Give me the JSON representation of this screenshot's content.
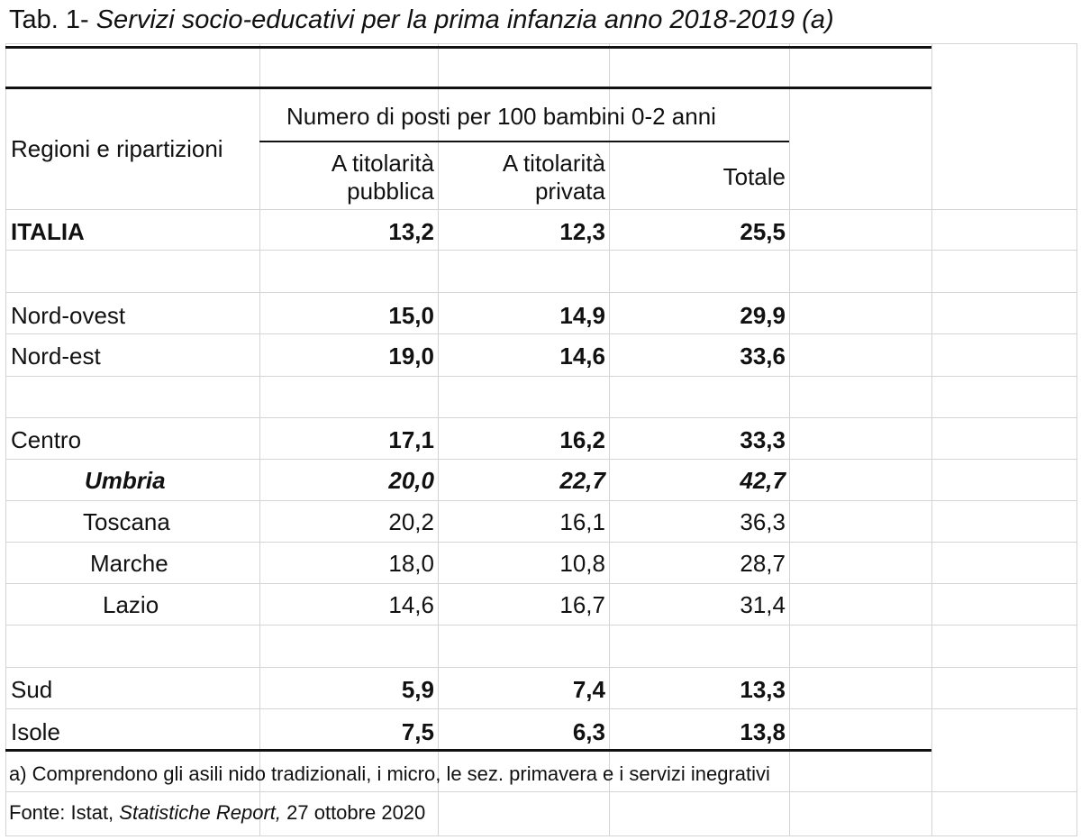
{
  "title": {
    "prefix": "Tab. 1- ",
    "text": "Servizi socio-educativi per la prima infanzia anno 2018-2019 (a)"
  },
  "header": {
    "row_label": "Regioni e ripartizioni",
    "group_label": "Numero di posti per 100 bambini 0-2 anni",
    "col1_line1": "A titolarità",
    "col1_line2": "pubblica",
    "col2_line1": "A titolarità",
    "col2_line2": "privata",
    "col3": "Totale"
  },
  "rows": [
    {
      "label": "ITALIA",
      "pub": "13,2",
      "priv": "12,3",
      "tot": "25,5"
    },
    {
      "label": "Nord-ovest",
      "pub": "15,0",
      "priv": "14,9",
      "tot": "29,9"
    },
    {
      "label": "Nord-est",
      "pub": "19,0",
      "priv": "14,6",
      "tot": "33,6"
    },
    {
      "label": "Centro",
      "pub": "17,1",
      "priv": "16,2",
      "tot": "33,3"
    },
    {
      "label": "Umbria",
      "pub": "20,0",
      "priv": "22,7",
      "tot": "42,7"
    },
    {
      "label": "Toscana",
      "pub": "20,2",
      "priv": "16,1",
      "tot": "36,3"
    },
    {
      "label": "Marche",
      "pub": "18,0",
      "priv": "10,8",
      "tot": "28,7"
    },
    {
      "label": "Lazio",
      "pub": "14,6",
      "priv": "16,7",
      "tot": "31,4"
    },
    {
      "label": "Sud",
      "pub": "5,9",
      "priv": "7,4",
      "tot": "13,3"
    },
    {
      "label": "Isole",
      "pub": "7,5",
      "priv": "6,3",
      "tot": "13,8"
    }
  ],
  "footnote": "a) Comprendono gli asili nido tradizionali, i micro, le sez. primavera e i servizi inegrativi",
  "source": {
    "prefix": "Fonte: Istat, ",
    "publication": "Statistiche Report,",
    "date": " 27 ottobre 2020"
  }
}
